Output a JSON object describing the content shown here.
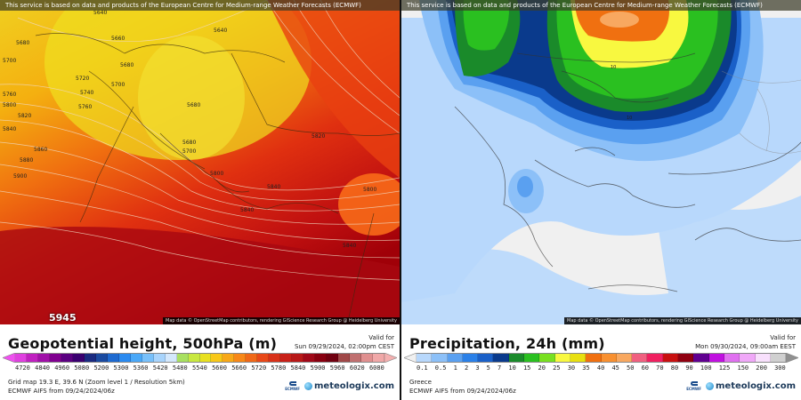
{
  "banner_text": "This service is based on data and products of the European Centre for Medium-range Weather Forecasts (ECMWF)",
  "attribution": "Map data © OpenStreetMap contributors, rendering GIScience Research Group @ Heidelberg University",
  "left": {
    "title": "Geopotential height, 500hPa (m)",
    "valid_label": "Valid for",
    "valid_time": "Sun 09/29/2024, 02:00pm CEST",
    "corner_value": "5945",
    "contour_labels": [
      "5640",
      "5640",
      "5660",
      "5660",
      "5680",
      "5700",
      "5700",
      "5720",
      "5740",
      "5760",
      "5760",
      "5780",
      "5800",
      "5820",
      "5840",
      "5860",
      "5880",
      "5900",
      "5820",
      "5820",
      "5800",
      "5840"
    ],
    "colorbar": {
      "ticks": [
        "4720",
        "4840",
        "4960",
        "5080",
        "5200",
        "5300",
        "5360",
        "5420",
        "5480",
        "5540",
        "5600",
        "5660",
        "5720",
        "5780",
        "5840",
        "5900",
        "5960",
        "6020",
        "6080"
      ],
      "colors": [
        "#e040e0",
        "#c020c0",
        "#a010a8",
        "#800090",
        "#5a0080",
        "#3a0070",
        "#1a2a80",
        "#1a4aa0",
        "#1e6ad0",
        "#2a8af0",
        "#4aa8f8",
        "#78c0fa",
        "#a8d4fc",
        "#d4e8fc",
        "#a8e060",
        "#c8e840",
        "#e8e020",
        "#f8c818",
        "#f8a818",
        "#f88818",
        "#f06818",
        "#e84818",
        "#d83018",
        "#c82018",
        "#b81818",
        "#a00818",
        "#880010",
        "#700010",
        "#a04848",
        "#c07070",
        "#e09090",
        "#f0a8a8"
      ],
      "left_cap": "#f050f0",
      "right_cap": "#f4b0b0"
    },
    "grid_info": "Grid map 19.3 E, 39.6 N (Zoom level 1 / Resolution 5km)",
    "model_info": "ECMWF AIFS from 09/24/2024/06z"
  },
  "right": {
    "title": "Precipitation, 24h (mm)",
    "valid_label": "Valid for",
    "valid_time": "Mon 09/30/2024, 09:00am EEST",
    "contour_labels": [
      "10",
      "10"
    ],
    "colorbar": {
      "ticks": [
        "0.1",
        "0.5",
        "1",
        "2",
        "3",
        "5",
        "7",
        "10",
        "15",
        "20",
        "25",
        "30",
        "35",
        "40",
        "45",
        "50",
        "60",
        "70",
        "80",
        "90",
        "100",
        "125",
        "150",
        "200",
        "300"
      ],
      "colors": [
        "#b8d8fc",
        "#8cc0f8",
        "#5aa0f0",
        "#2a80e8",
        "#1a60c8",
        "#0a3a8c",
        "#1a8a2a",
        "#2ac020",
        "#78e020",
        "#f8f840",
        "#e8e010",
        "#f07010",
        "#f89030",
        "#f8a860",
        "#f06080",
        "#f02060",
        "#c81010",
        "#900010",
        "#600090",
        "#c010e0",
        "#e070f0",
        "#f0a8f8",
        "#f8e0fc",
        "#d0d0d0"
      ],
      "left_cap": "#f0f0f0",
      "right_cap": "#909090"
    },
    "region": "Greece",
    "model_info": "ECMWF AIFS from 09/24/2024/06z"
  },
  "logos": {
    "ecmwf": "ECMWF",
    "meteologix": "meteologix.com"
  }
}
